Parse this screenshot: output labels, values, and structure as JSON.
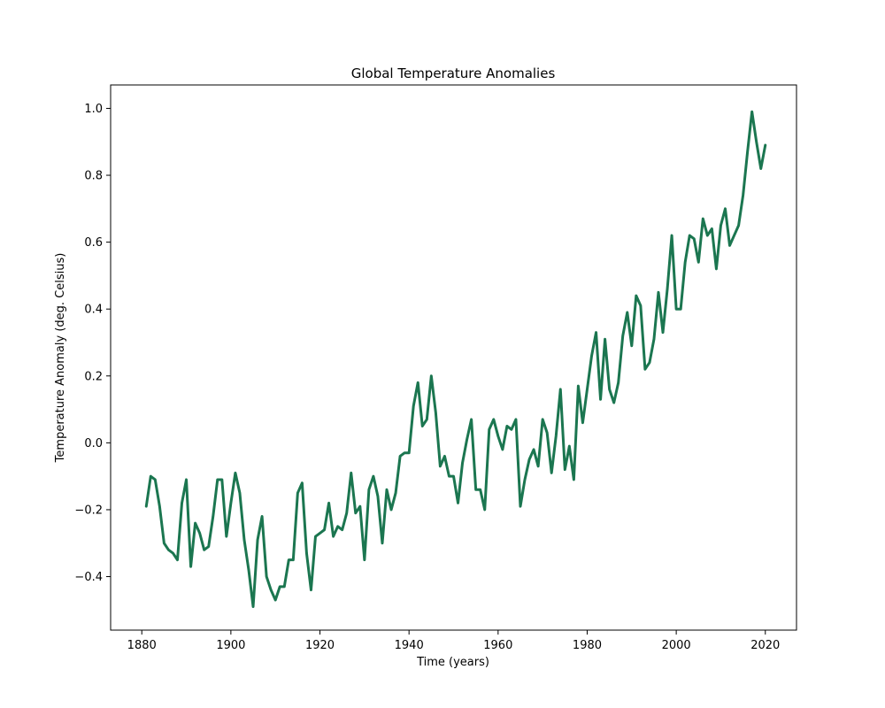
{
  "chart_data": {
    "type": "line",
    "title": "Global Temperature Anomalies",
    "xlabel": "Time (years)",
    "ylabel": "Temperature Anomaly (deg. Celsius)",
    "xlim": [
      1873,
      2027
    ],
    "ylim": [
      -0.56,
      1.07
    ],
    "xticks": [
      1880,
      1900,
      1920,
      1940,
      1960,
      1980,
      2000,
      2020
    ],
    "yticks": [
      -0.4,
      -0.2,
      0.0,
      0.2,
      0.4,
      0.6,
      0.8,
      1.0
    ],
    "xtick_labels": [
      "1880",
      "1900",
      "1920",
      "1940",
      "1960",
      "1980",
      "2000",
      "2020"
    ],
    "ytick_labels": [
      "−0.4",
      "−0.2",
      "0.0",
      "0.2",
      "0.4",
      "0.6",
      "0.8",
      "1.0"
    ],
    "grid": false,
    "line_color": "#1b7650",
    "series": [
      {
        "x": [
          1881,
          1882,
          1883,
          1884,
          1885,
          1886,
          1887,
          1888,
          1889,
          1890,
          1891,
          1892,
          1893,
          1894,
          1895,
          1896,
          1897,
          1898,
          1899,
          1900,
          1901,
          1902,
          1903,
          1904,
          1905,
          1906,
          1907,
          1908,
          1909,
          1910,
          1911,
          1912,
          1913,
          1914,
          1915,
          1916,
          1917,
          1918,
          1919,
          1920,
          1921,
          1922,
          1923,
          1924,
          1925,
          1926,
          1927,
          1928,
          1929,
          1930,
          1931,
          1932,
          1933,
          1934,
          1935,
          1936,
          1937,
          1938,
          1939,
          1940,
          1941,
          1942,
          1943,
          1944,
          1945,
          1946,
          1947,
          1948,
          1949,
          1950,
          1951,
          1952,
          1953,
          1954,
          1955,
          1956,
          1957,
          1958,
          1959,
          1960,
          1961,
          1962,
          1963,
          1964,
          1965,
          1966,
          1967,
          1968,
          1969,
          1970,
          1971,
          1972,
          1973,
          1974,
          1975,
          1976,
          1977,
          1978,
          1979,
          1980,
          1981,
          1982,
          1983,
          1984,
          1985,
          1986,
          1987,
          1988,
          1989,
          1990,
          1991,
          1992,
          1993,
          1994,
          1995,
          1996,
          1997,
          1998,
          1999,
          2000,
          2001,
          2002,
          2003,
          2004,
          2005,
          2006,
          2007,
          2008,
          2009,
          2010,
          2011,
          2012,
          2013,
          2014,
          2015,
          2016,
          2017,
          2018,
          2019,
          2020
        ],
        "y": [
          -0.19,
          -0.1,
          -0.11,
          -0.19,
          -0.3,
          -0.32,
          -0.33,
          -0.35,
          -0.18,
          -0.11,
          -0.37,
          -0.24,
          -0.27,
          -0.32,
          -0.31,
          -0.22,
          -0.11,
          -0.11,
          -0.28,
          -0.18,
          -0.09,
          -0.15,
          -0.29,
          -0.38,
          -0.49,
          -0.29,
          -0.22,
          -0.4,
          -0.44,
          -0.47,
          -0.43,
          -0.43,
          -0.35,
          -0.35,
          -0.15,
          -0.12,
          -0.33,
          -0.44,
          -0.28,
          -0.27,
          -0.26,
          -0.18,
          -0.28,
          -0.25,
          -0.26,
          -0.21,
          -0.09,
          -0.21,
          -0.19,
          -0.35,
          -0.14,
          -0.1,
          -0.16,
          -0.3,
          -0.14,
          -0.2,
          -0.15,
          -0.04,
          -0.03,
          -0.03,
          0.11,
          0.18,
          0.05,
          0.07,
          0.2,
          0.09,
          -0.07,
          -0.04,
          -0.1,
          -0.1,
          -0.18,
          -0.06,
          0.01,
          0.07,
          -0.14,
          -0.14,
          -0.2,
          0.04,
          0.07,
          0.02,
          -0.02,
          0.05,
          0.04,
          0.07,
          -0.19,
          -0.11,
          -0.05,
          -0.02,
          -0.07,
          0.07,
          0.03,
          -0.09,
          0.02,
          0.16,
          -0.08,
          -0.01,
          -0.11,
          0.17,
          0.06,
          0.16,
          0.26,
          0.33,
          0.13,
          0.31,
          0.16,
          0.12,
          0.18,
          0.32,
          0.39,
          0.29,
          0.44,
          0.41,
          0.22,
          0.24,
          0.31,
          0.45,
          0.33,
          0.46,
          0.62,
          0.4,
          0.4,
          0.54,
          0.62,
          0.61,
          0.54,
          0.67,
          0.62,
          0.64,
          0.52,
          0.65,
          0.7,
          0.59,
          0.62,
          0.65,
          0.74,
          0.87,
          0.99,
          0.9,
          0.82,
          0.89
        ]
      }
    ]
  }
}
